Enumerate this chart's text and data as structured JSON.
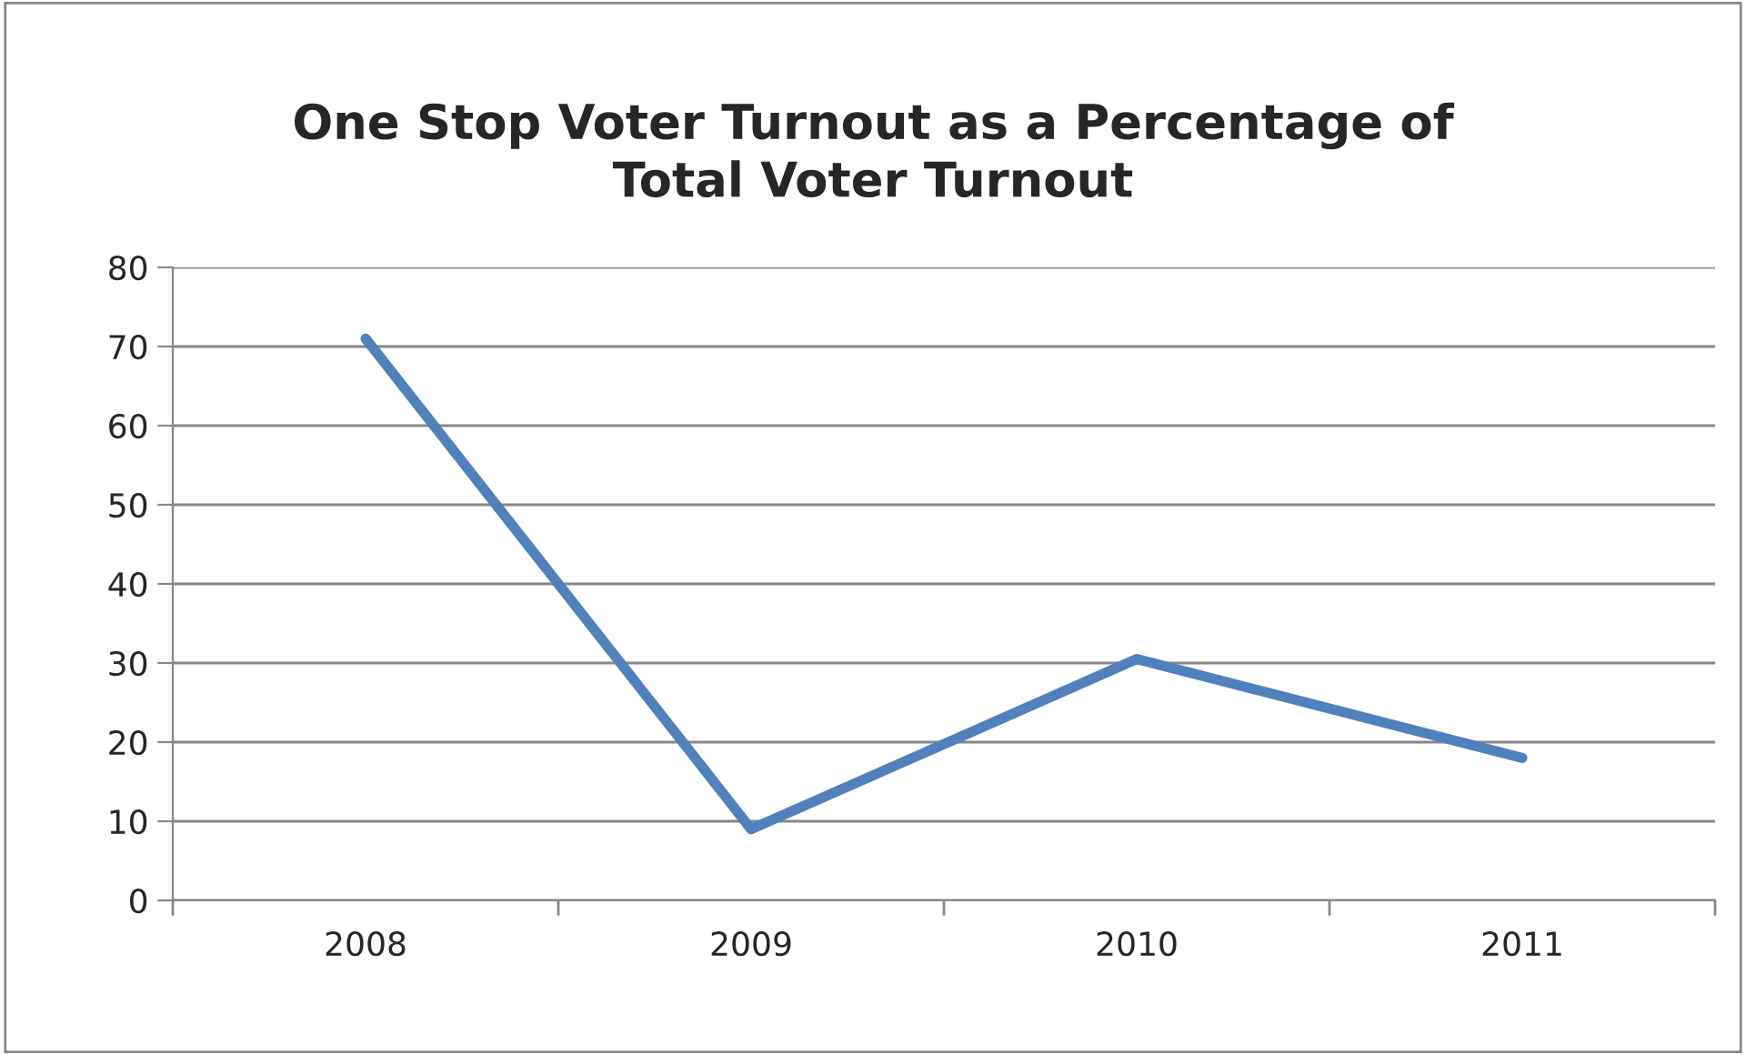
{
  "chart_data": {
    "type": "line",
    "title": "One Stop Voter Turnout as a Percentage of\nTotal Voter Turnout",
    "categories": [
      "2008",
      "2009",
      "2010",
      "2011"
    ],
    "series": [
      {
        "color": "#4f81bd",
        "values": [
          71,
          9,
          30.5,
          18
        ]
      }
    ],
    "ylim": [
      0,
      80
    ],
    "yticks": [
      0,
      10,
      20,
      30,
      40,
      50,
      60,
      70,
      80
    ],
    "grid": "y",
    "marker": "none",
    "line_style": "solid"
  }
}
